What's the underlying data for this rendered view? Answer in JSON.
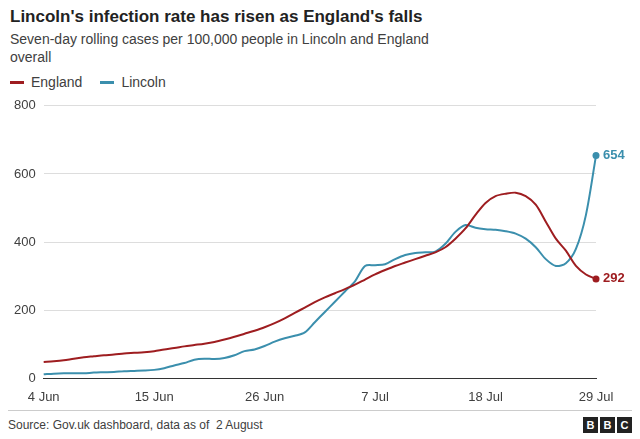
{
  "chart_data": {
    "type": "line",
    "title": "Lincoln's infection rate has risen as England's falls",
    "subtitle": "Seven-day rolling cases per 100,000 people in Lincoln and England overall",
    "source": "Source: Gov.uk dashboard, data as of  2 August",
    "logo": "BBC",
    "categories": [
      "4 Jun",
      null,
      null,
      null,
      null,
      null,
      null,
      null,
      null,
      null,
      null,
      "15 Jun",
      null,
      null,
      null,
      null,
      null,
      null,
      null,
      null,
      null,
      null,
      "26 Jun",
      null,
      null,
      null,
      null,
      null,
      null,
      null,
      null,
      null,
      null,
      "7 Jul",
      null,
      null,
      null,
      null,
      null,
      null,
      null,
      null,
      null,
      null,
      "18 Jul",
      null,
      null,
      null,
      null,
      null,
      null,
      null,
      null,
      null,
      null,
      "29 Jul"
    ],
    "series": [
      {
        "name": "England",
        "color": "#9e1d20",
        "values": [
          48,
          50,
          53,
          58,
          62,
          65,
          68,
          70,
          73,
          75,
          77,
          80,
          85,
          89,
          94,
          98,
          102,
          107,
          114,
          122,
          131,
          140,
          150,
          162,
          176,
          192,
          208,
          224,
          238,
          250,
          262,
          275,
          290,
          305,
          318,
          330,
          340,
          350,
          360,
          370,
          385,
          410,
          440,
          480,
          515,
          535,
          542,
          545,
          535,
          510,
          460,
          410,
          375,
          330,
          305,
          292
        ]
      },
      {
        "name": "Lincoln",
        "color": "#3b8fad",
        "values": [
          12,
          14,
          15,
          15,
          15,
          17,
          18,
          19,
          21,
          22,
          23,
          25,
          30,
          38,
          45,
          55,
          58,
          57,
          60,
          68,
          80,
          85,
          95,
          108,
          118,
          125,
          135,
          165,
          195,
          225,
          255,
          285,
          330,
          332,
          335,
          350,
          362,
          368,
          370,
          372,
          395,
          430,
          450,
          442,
          438,
          436,
          432,
          425,
          410,
          385,
          350,
          330,
          338,
          380,
          480,
          654
        ]
      }
    ],
    "annotations": [
      {
        "series": "Lincoln",
        "x": "29 Jul",
        "y": 654,
        "text": "654"
      },
      {
        "series": "England",
        "x": "29 Jul",
        "y": 292,
        "text": "292"
      }
    ],
    "ylim": [
      0,
      800
    ],
    "yticks": [
      0,
      200,
      400,
      600,
      800
    ],
    "grid": true
  }
}
